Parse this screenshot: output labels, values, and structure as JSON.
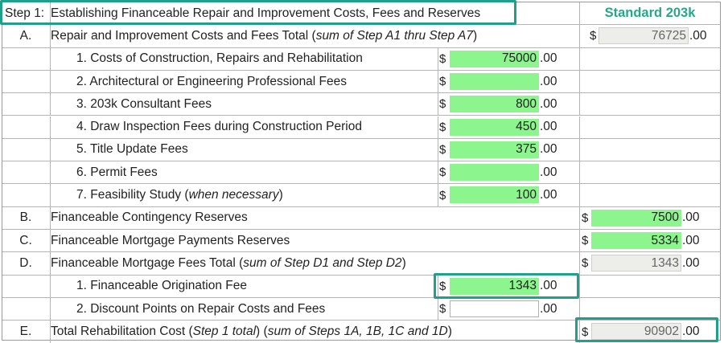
{
  "header": {
    "step_label": "Step 1:",
    "title": "Establishing Financeable Repair and Improvement Costs, Fees and Reserves",
    "column_title": "Standard 203k"
  },
  "currency": "$",
  "cents": ".00",
  "rows": [
    {
      "letter": "A.",
      "desc": "Repair and Improvement Costs and Fees Total (",
      "desc_italic": "sum of Step A1 thru Step A7",
      "desc_end": ")",
      "right_value": "76725"
    },
    {
      "desc": "1. Costs of Construction, Repairs and Rehabilitation",
      "mid_value": "75000"
    },
    {
      "desc": "2. Architectural or Engineering Professional Fees",
      "mid_value": ""
    },
    {
      "desc": "3. 203k Consultant Fees",
      "mid_value": "800"
    },
    {
      "desc": "4. Draw Inspection Fees during Construction Period",
      "mid_value": "450"
    },
    {
      "desc": "5. Title Update Fees",
      "mid_value": "375"
    },
    {
      "desc": "6. Permit Fees",
      "mid_value": ""
    },
    {
      "desc": "7. Feasibility Study (",
      "desc_italic": "when necessary",
      "desc_end": ")",
      "mid_value": "100"
    },
    {
      "letter": "B.",
      "desc": "Financeable Contingency Reserves",
      "right_value": "7500"
    },
    {
      "letter": "C.",
      "desc": "Financeable Mortgage Payments Reserves",
      "right_value": "5334"
    },
    {
      "letter": "D.",
      "desc": "Financeable Mortgage Fees Total (",
      "desc_italic": "sum of Step D1 and Step D2",
      "desc_end": ")",
      "right_value": "1343"
    },
    {
      "desc": "1. Financeable Origination Fee",
      "mid_value": "1343"
    },
    {
      "desc": "2. Discount Points on Repair Costs and Fees",
      "mid_value": ""
    },
    {
      "letter": "E.",
      "desc": "Total Rehabilitation Cost (",
      "desc_italic": "Step 1 total",
      "desc_mid": ") (",
      "desc_italic2": "sum of Steps 1A, 1B, 1C and 1D",
      "desc_end": ")",
      "right_value": "90902"
    }
  ]
}
